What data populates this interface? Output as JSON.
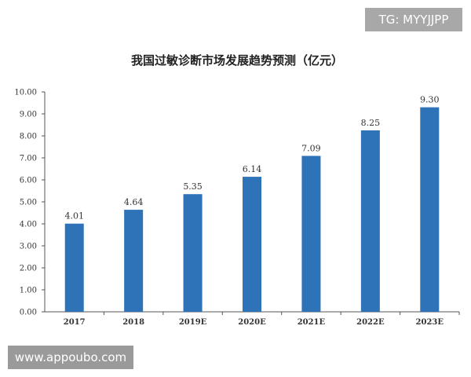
{
  "watermark_top": "TG: MYYJJPP",
  "watermark_bottom": "www.appoubo.com",
  "chart_data": {
    "type": "bar",
    "title": "我国过敏诊断市场发展趋势预测（亿元）",
    "xlabel": "",
    "ylabel": "",
    "categories": [
      "2017",
      "2018",
      "2019E",
      "2020E",
      "2021E",
      "2022E",
      "2023E"
    ],
    "values": [
      4.01,
      4.64,
      5.35,
      6.14,
      7.09,
      8.25,
      9.3
    ],
    "value_labels": [
      "4.01",
      "4.64",
      "5.35",
      "6.14",
      "7.09",
      "8.25",
      "9.30"
    ],
    "ylim": [
      0,
      10
    ],
    "yticks": [
      "0.00",
      "1.00",
      "2.00",
      "3.00",
      "4.00",
      "5.00",
      "6.00",
      "7.00",
      "8.00",
      "9.00",
      "10.00"
    ],
    "bar_color": "#2e72b8",
    "grid": false,
    "legend": "none"
  }
}
